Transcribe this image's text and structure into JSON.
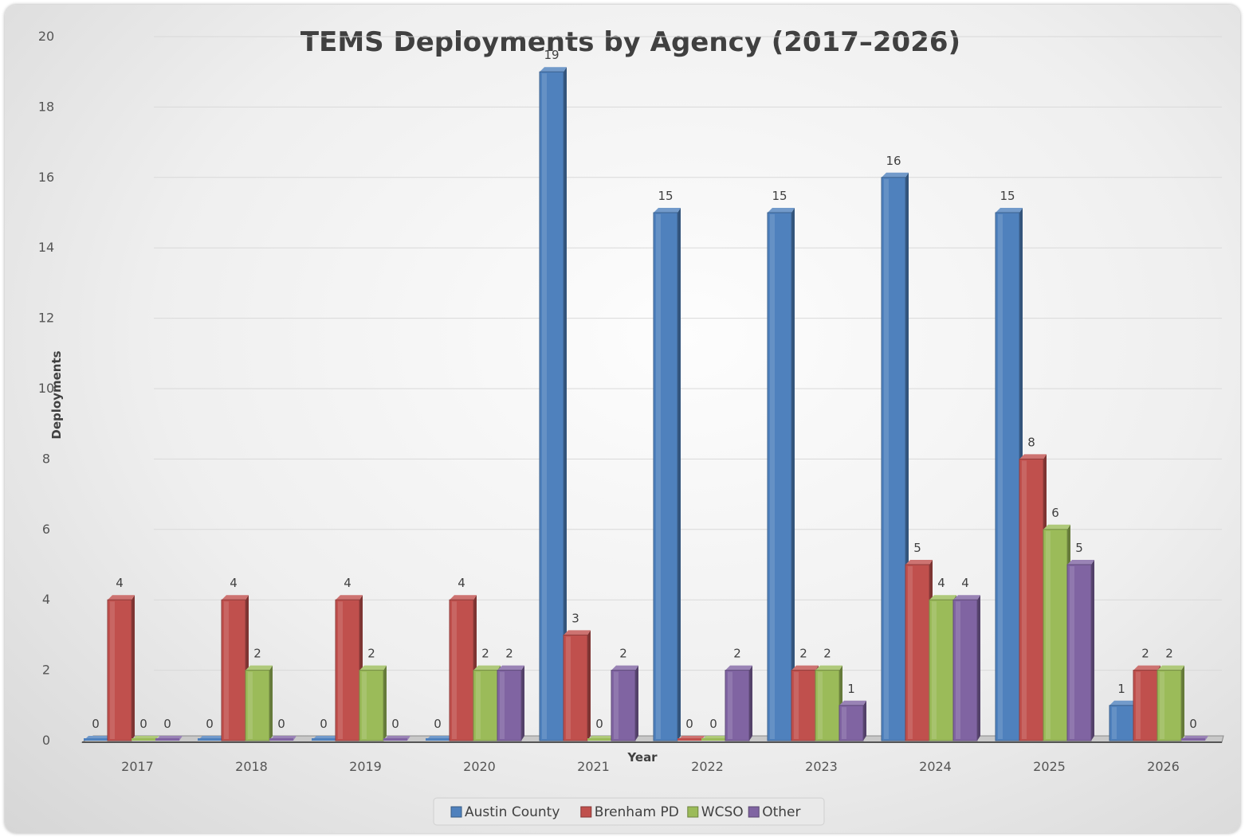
{
  "chart_data": {
    "type": "bar",
    "title": "TEMS Deployments by Agency (2017–2026)",
    "xlabel": "Year",
    "ylabel": "Deployments",
    "ylim": [
      0,
      20
    ],
    "yticks": [
      0,
      2,
      4,
      6,
      8,
      10,
      12,
      14,
      16,
      18,
      20
    ],
    "grid": true,
    "legend_position": "bottom",
    "data_labels": true,
    "categories": [
      "2017",
      "2018",
      "2019",
      "2020",
      "2021",
      "2022",
      "2023",
      "2024",
      "2025",
      "2026"
    ],
    "series": [
      {
        "name": "Austin County",
        "color": "#4f81bd",
        "values": [
          0,
          0,
          0,
          0,
          19,
          15,
          15,
          16,
          15,
          1
        ]
      },
      {
        "name": "Brenham PD",
        "color": "#c0504d",
        "values": [
          4,
          4,
          4,
          4,
          3,
          0,
          2,
          5,
          8,
          2
        ]
      },
      {
        "name": "WCSO",
        "color": "#9bbb59",
        "values": [
          0,
          2,
          2,
          2,
          0,
          0,
          2,
          4,
          6,
          2
        ]
      },
      {
        "name": "Other",
        "color": "#8064a2",
        "values": [
          0,
          0,
          0,
          2,
          2,
          2,
          1,
          4,
          5,
          0
        ]
      }
    ]
  }
}
